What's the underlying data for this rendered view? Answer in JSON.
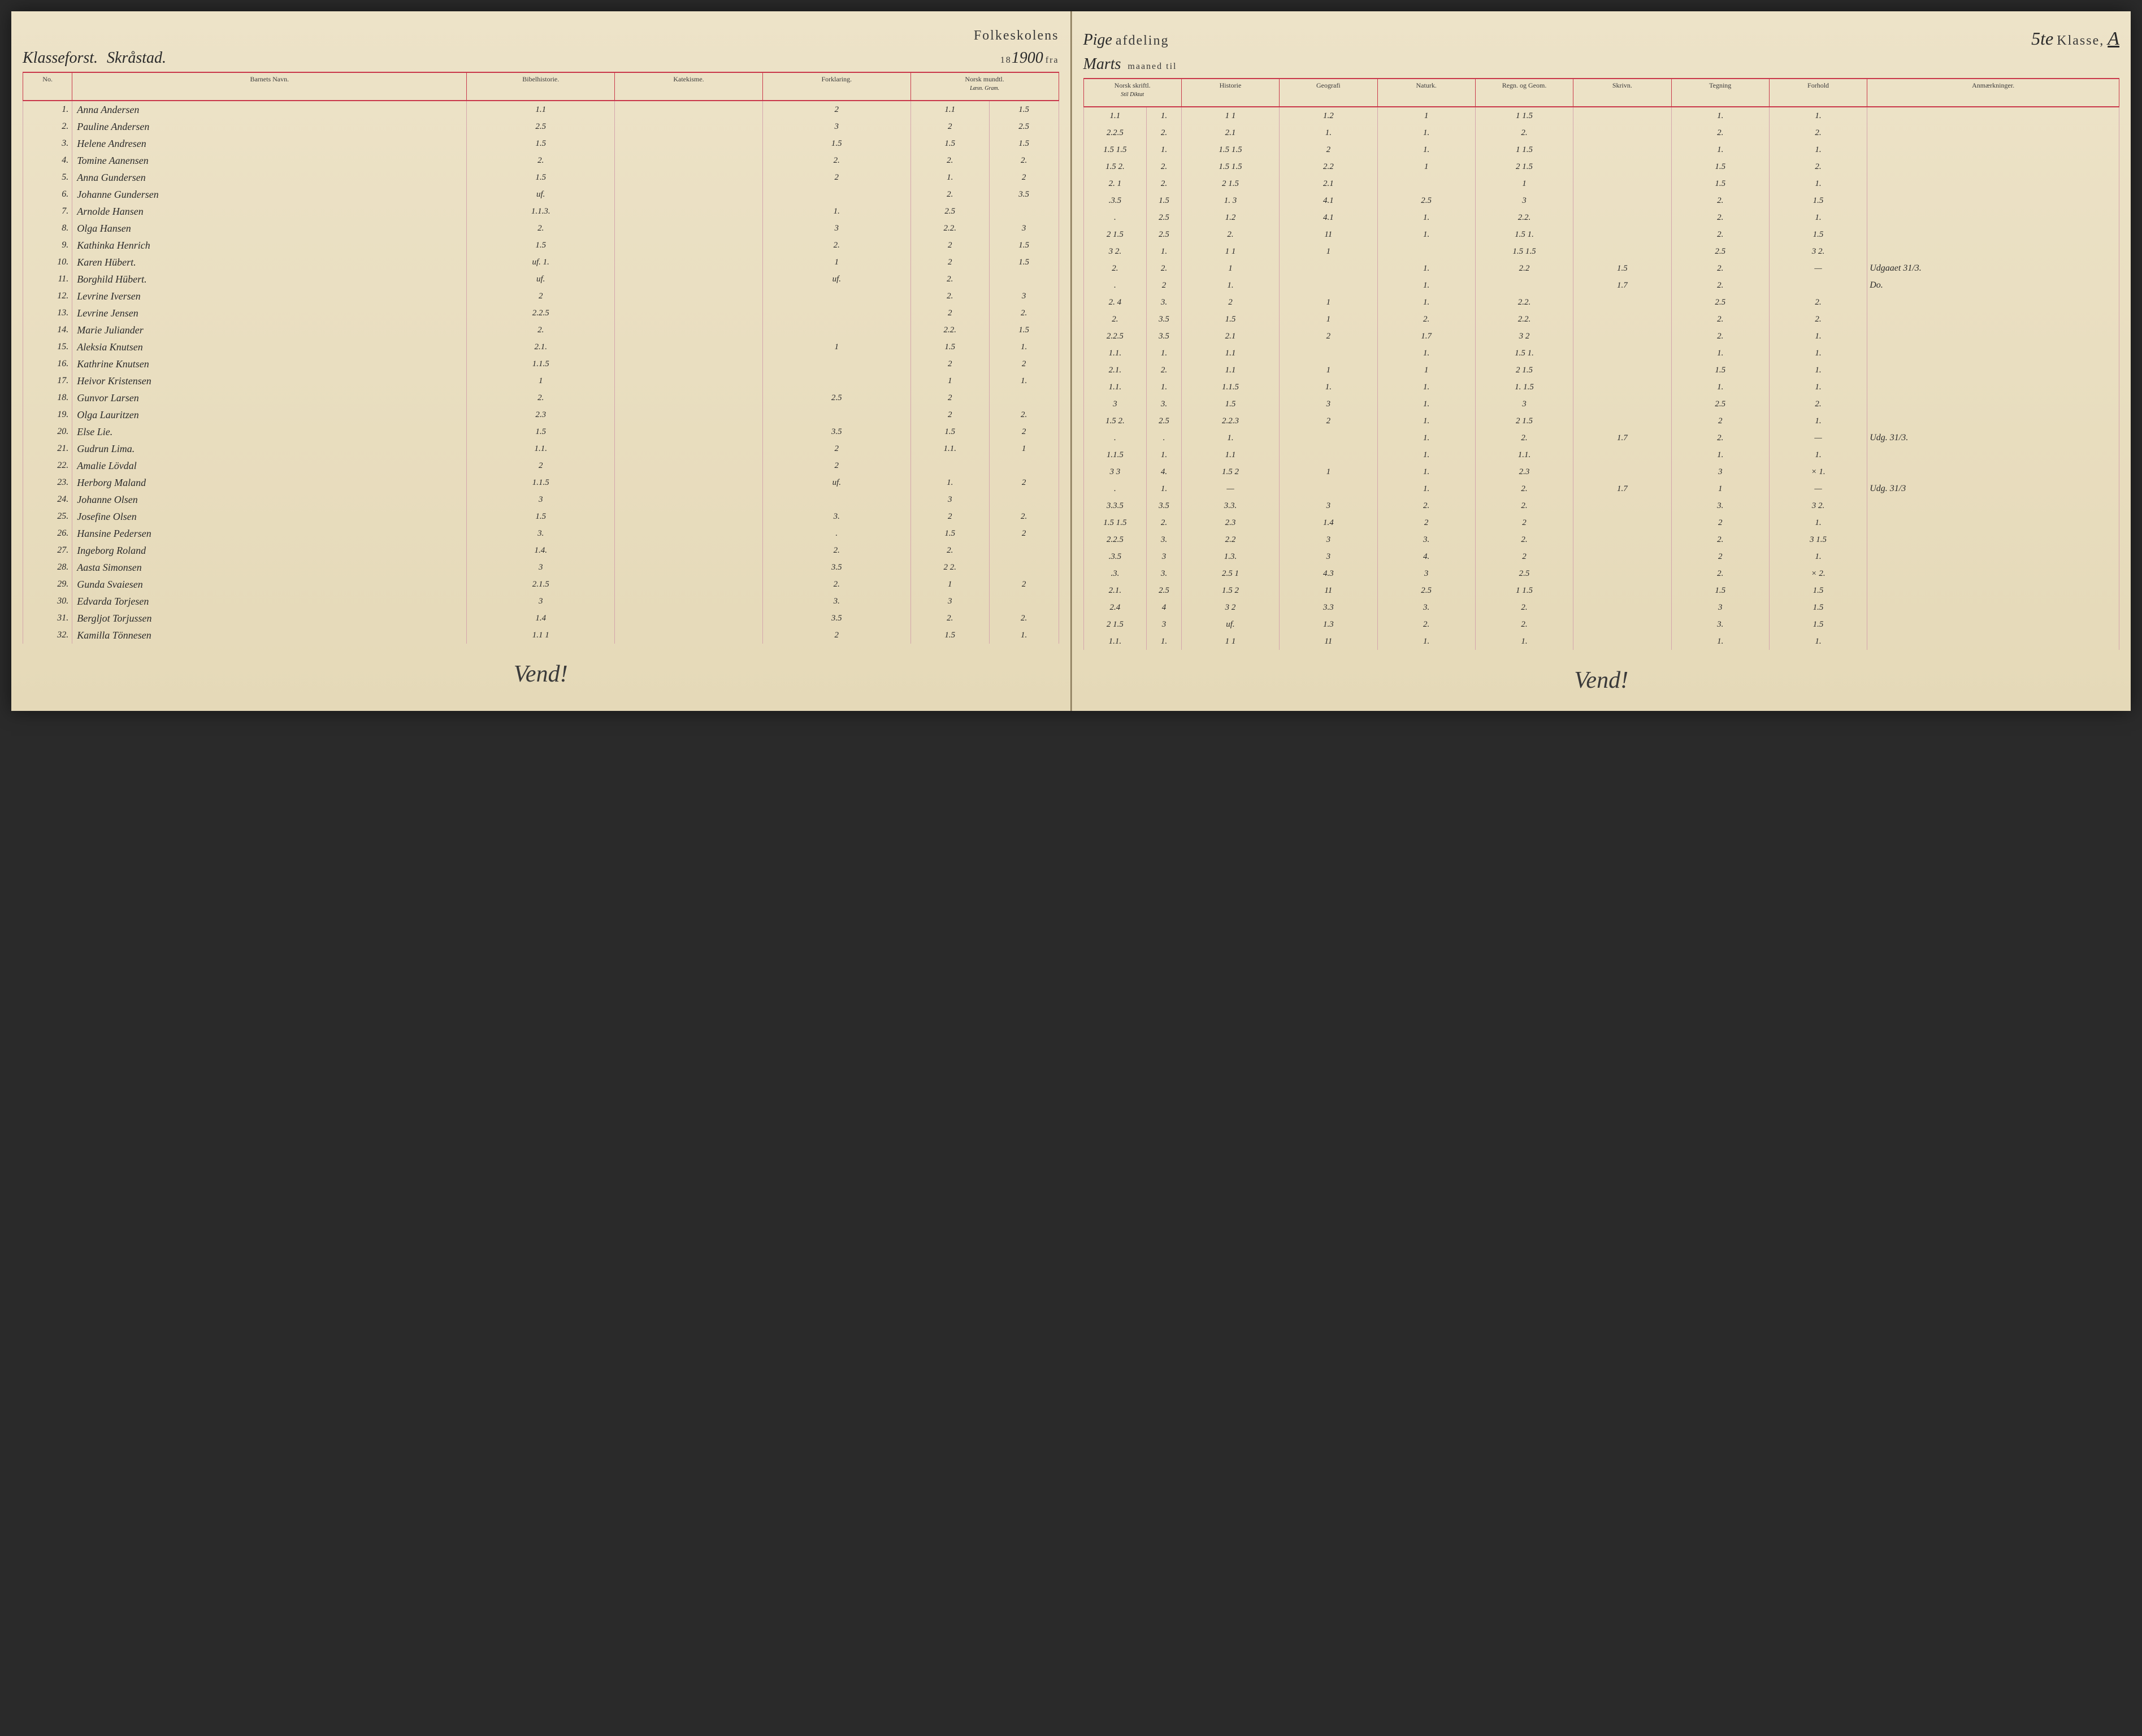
{
  "header": {
    "school_title_left": "Folkeskolens",
    "school_title_right_script": "Pige",
    "school_title_right_cont": "afdeling",
    "year_prefix": "18",
    "year_script": "1900",
    "fra": "fra",
    "month_script": "Marts",
    "maaned_til": "maaned til",
    "klasse_no": "5te",
    "klasse_label": "Klasse,",
    "klasse_letter": "A",
    "teacher_label": "Klasseforst.",
    "teacher_name": "Skråstad."
  },
  "columns_left": {
    "no": "No.",
    "name": "Barnets Navn.",
    "bibel": "Bibelhistorie.",
    "katek": "Katekisme.",
    "forkl": "Forklaring.",
    "norsk_m": "Norsk mundtl.",
    "norsk_m_sub": "Læsn. Gram."
  },
  "columns_right": {
    "norsk_s": "Norsk skriftl.",
    "norsk_s_sub": "Stil Diktat",
    "hist": "Historie",
    "geo": "Geografi",
    "natur": "Naturk.",
    "regn": "Regn. og Geom.",
    "skriv": "Skrivn.",
    "tegn": "Tegning",
    "forhold": "Forhold",
    "anm": "Anmærkninger."
  },
  "students": [
    {
      "no": "1",
      "name": "Anna Andersen",
      "bibel": "1.1",
      "forkl": "2",
      "nm1": "1.1",
      "nm2": "1.5",
      "ns1": "1.1",
      "ns2": "1.",
      "hist": "1 1",
      "geo": "1.2",
      "nat": "1",
      "regn": "1 1.5",
      "skriv": "",
      "tegn": "1.",
      "forh": "1.",
      "anm": ""
    },
    {
      "no": "2",
      "name": "Pauline Andersen",
      "bibel": "2.5",
      "forkl": "3",
      "nm1": "2",
      "nm2": "2.5",
      "ns1": "2.2.5",
      "ns2": "2.",
      "hist": "2.1",
      "geo": "1.",
      "nat": "1.",
      "regn": "2.",
      "skriv": "",
      "tegn": "2.",
      "forh": "2.",
      "anm": ""
    },
    {
      "no": "3",
      "name": "Helene Andresen",
      "bibel": "1.5",
      "forkl": "1.5",
      "nm1": "1.5",
      "nm2": "1.5",
      "ns1": "1.5 1.5",
      "ns2": "1.",
      "hist": "1.5 1.5",
      "geo": "2",
      "nat": "1.",
      "regn": "1 1.5",
      "skriv": "",
      "tegn": "1.",
      "forh": "1.",
      "anm": ""
    },
    {
      "no": "4",
      "name": "Tomine Aanensen",
      "bibel": "2.",
      "forkl": "2.",
      "nm1": "2.",
      "nm2": "2.",
      "ns1": "1.5 2.",
      "ns2": "2.",
      "hist": "1.5 1.5",
      "geo": "2.2",
      "nat": "1",
      "regn": "2 1.5",
      "skriv": "",
      "tegn": "1.5",
      "forh": "2.",
      "anm": ""
    },
    {
      "no": "5",
      "name": "Anna Gundersen",
      "bibel": "1.5",
      "forkl": "2",
      "nm1": "1.",
      "nm2": "2",
      "ns1": "2. 1",
      "ns2": "2.",
      "hist": "2 1.5",
      "geo": "2.1",
      "nat": "",
      "regn": "1",
      "skriv": "",
      "tegn": "1.5",
      "forh": "1.",
      "anm": ""
    },
    {
      "no": "6",
      "name": "Johanne Gundersen",
      "bibel": "uf.",
      "forkl": "",
      "nm1": "2.",
      "nm2": "3.5",
      "ns1": ".3.5",
      "ns2": "1.5",
      "hist": "1. 3",
      "geo": "4.1",
      "nat": "2.5",
      "regn": "3",
      "skriv": "",
      "tegn": "2.",
      "forh": "1.5",
      "anm": ""
    },
    {
      "no": "7",
      "name": "Arnolde Hansen",
      "bibel": "1.1.3.",
      "forkl": "1.",
      "nm1": "2.5",
      "nm2": "",
      "ns1": ".",
      "ns2": "2.5",
      "hist": "1.2",
      "geo": "4.1",
      "nat": "1.",
      "regn": "2.2.",
      "skriv": "",
      "tegn": "2.",
      "forh": "1.",
      "anm": ""
    },
    {
      "no": "8",
      "name": "Olga Hansen",
      "bibel": "2.",
      "forkl": "3",
      "nm1": "2.2.",
      "nm2": "3",
      "ns1": "2 1.5",
      "ns2": "2.5",
      "hist": "2.",
      "geo": "11",
      "nat": "1.",
      "regn": "1.5 1.",
      "skriv": "",
      "tegn": "2.",
      "forh": "1.5",
      "anm": ""
    },
    {
      "no": "9",
      "name": "Kathinka Henrich",
      "bibel": "1.5",
      "forkl": "2.",
      "nm1": "2",
      "nm2": "1.5",
      "ns1": "3 2.",
      "ns2": "1.",
      "hist": "1 1",
      "geo": "1",
      "nat": "",
      "regn": "1.5 1.5",
      "skriv": "",
      "tegn": "2.5",
      "forh": "3 2.",
      "anm": ""
    },
    {
      "no": "10",
      "name": "Karen Hübert.",
      "bibel": "uf. 1.",
      "forkl": "1",
      "nm1": "2",
      "nm2": "1.5",
      "ns1": "2.",
      "ns2": "2.",
      "hist": "1",
      "geo": "",
      "nat": "1.",
      "regn": "2.2",
      "skriv": "1.5",
      "tegn": "2.",
      "forh": "—",
      "anm": "Udgaaet 31/3."
    },
    {
      "no": "11",
      "name": "Borghild Hübert.",
      "bibel": "uf.",
      "forkl": "uf.",
      "nm1": "2.",
      "nm2": "",
      "ns1": ".",
      "ns2": "2",
      "hist": "1.",
      "geo": "",
      "nat": "1.",
      "regn": "",
      "skriv": "1.7",
      "tegn": "2.",
      "forh": "",
      "anm": "Do."
    },
    {
      "no": "12",
      "name": "Levrine Iversen",
      "bibel": "2",
      "forkl": "",
      "nm1": "2.",
      "nm2": "3",
      "ns1": "2. 4",
      "ns2": "3.",
      "hist": "2",
      "geo": "1",
      "nat": "1.",
      "regn": "2.2.",
      "skriv": "",
      "tegn": "2.5",
      "forh": "2.",
      "anm": ""
    },
    {
      "no": "13",
      "name": "Levrine Jensen",
      "bibel": "2.2.5",
      "forkl": "",
      "nm1": "2",
      "nm2": "2.",
      "ns1": "2.",
      "ns2": "3.5",
      "hist": "1.5",
      "geo": "1",
      "nat": "2.",
      "regn": "2.2.",
      "skriv": "",
      "tegn": "2.",
      "forh": "2.",
      "anm": ""
    },
    {
      "no": "14",
      "name": "Marie Juliander",
      "bibel": "2.",
      "forkl": "",
      "nm1": "2.2.",
      "nm2": "1.5",
      "ns1": "2.2.5",
      "ns2": "3.5",
      "hist": "2.1",
      "geo": "2",
      "nat": "1.7",
      "regn": "3 2",
      "skriv": "",
      "tegn": "2.",
      "forh": "1.",
      "anm": ""
    },
    {
      "no": "15",
      "name": "Aleksia Knutsen",
      "bibel": "2.1.",
      "forkl": "1",
      "nm1": "1.5",
      "nm2": "1.",
      "ns1": "1.1.",
      "ns2": "1.",
      "hist": "1.1",
      "geo": "",
      "nat": "1.",
      "regn": "1.5 1.",
      "skriv": "",
      "tegn": "1.",
      "forh": "1.",
      "anm": ""
    },
    {
      "no": "16",
      "name": "Kathrine Knutsen",
      "bibel": "1.1.5",
      "forkl": "",
      "nm1": "2",
      "nm2": "2",
      "ns1": "2.1.",
      "ns2": "2.",
      "hist": "1.1",
      "geo": "1",
      "nat": "1",
      "regn": "2 1.5",
      "skriv": "",
      "tegn": "1.5",
      "forh": "1.",
      "anm": ""
    },
    {
      "no": "17",
      "name": "Heivor Kristensen",
      "bibel": "1",
      "forkl": "",
      "nm1": "1",
      "nm2": "1.",
      "ns1": "1.1.",
      "ns2": "1.",
      "hist": "1.1.5",
      "geo": "1.",
      "nat": "1.",
      "regn": "1. 1.5",
      "skriv": "",
      "tegn": "1.",
      "forh": "1.",
      "anm": ""
    },
    {
      "no": "18",
      "name": "Gunvor Larsen",
      "bibel": "2.",
      "forkl": "2.5",
      "nm1": "2",
      "nm2": "",
      "ns1": "3",
      "ns2": "3.",
      "hist": "1.5",
      "geo": "3",
      "nat": "1.",
      "regn": "3",
      "skriv": "",
      "tegn": "2.5",
      "forh": "2.",
      "anm": ""
    },
    {
      "no": "19",
      "name": "Olga Lauritzen",
      "bibel": "2.3",
      "forkl": "",
      "nm1": "2",
      "nm2": "2.",
      "ns1": "1.5 2.",
      "ns2": "2.5",
      "hist": "2.2.3",
      "geo": "2",
      "nat": "1.",
      "regn": "2 1.5",
      "skriv": "",
      "tegn": "2",
      "forh": "1.",
      "anm": ""
    },
    {
      "no": "20",
      "name": "Else Lie.",
      "bibel": "1.5",
      "forkl": "3.5",
      "nm1": "1.5",
      "nm2": "2",
      "ns1": ".",
      "ns2": ".",
      "hist": "1.",
      "geo": "",
      "nat": "1.",
      "regn": "2.",
      "skriv": "1.7",
      "tegn": "2.",
      "forh": "—",
      "anm": "Udg. 31/3."
    },
    {
      "no": "21",
      "name": "Gudrun Lima.",
      "bibel": "1.1.",
      "forkl": "2",
      "nm1": "1.1.",
      "nm2": "1",
      "ns1": "1.1.5",
      "ns2": "1.",
      "hist": "1.1",
      "geo": "",
      "nat": "1.",
      "regn": "1.1.",
      "skriv": "",
      "tegn": "1.",
      "forh": "1.",
      "anm": ""
    },
    {
      "no": "22",
      "name": "Amalie Lövdal",
      "bibel": "2",
      "forkl": "2",
      "nm1": "",
      "nm2": "",
      "ns1": "3 3",
      "ns2": "4.",
      "hist": "1.5 2",
      "geo": "1",
      "nat": "1.",
      "regn": "2.3",
      "skriv": "",
      "tegn": "3",
      "forh": "× 1.",
      "anm": ""
    },
    {
      "no": "23",
      "name": "Herborg Maland",
      "bibel": "1.1.5",
      "forkl": "uf.",
      "nm1": "1.",
      "nm2": "2",
      "ns1": ".",
      "ns2": "1.",
      "hist": "—",
      "geo": "",
      "nat": "1.",
      "regn": "2.",
      "skriv": "1.7",
      "tegn": "1",
      "forh": "—",
      "anm": "Udg. 31/3"
    },
    {
      "no": "24",
      "name": "Johanne Olsen",
      "bibel": "3",
      "forkl": "",
      "nm1": "3",
      "nm2": "",
      "ns1": "3.3.5",
      "ns2": "3.5",
      "hist": "3.3.",
      "geo": "3",
      "nat": "2.",
      "regn": "2.",
      "skriv": "",
      "tegn": "3.",
      "forh": "3 2.",
      "anm": ""
    },
    {
      "no": "25",
      "name": "Josefine Olsen",
      "bibel": "1.5",
      "forkl": "3.",
      "nm1": "2",
      "nm2": "2.",
      "ns1": "1.5 1.5",
      "ns2": "2.",
      "hist": "2.3",
      "geo": "1.4",
      "nat": "2",
      "regn": "2",
      "skriv": "",
      "tegn": "2",
      "forh": "1.",
      "anm": ""
    },
    {
      "no": "26",
      "name": "Hansine Pedersen",
      "bibel": "3.",
      "forkl": ".",
      "nm1": "1.5",
      "nm2": "2",
      "ns1": "2.2.5",
      "ns2": "3.",
      "hist": "2.2",
      "geo": "3",
      "nat": "3.",
      "regn": "2.",
      "skriv": "",
      "tegn": "2.",
      "forh": "3 1.5",
      "anm": ""
    },
    {
      "no": "27",
      "name": "Ingeborg Roland",
      "bibel": "1.4.",
      "forkl": "2.",
      "nm1": "2.",
      "nm2": "",
      "ns1": ".3.5",
      "ns2": "3",
      "hist": "1.3.",
      "geo": "3",
      "nat": "4.",
      "regn": "2",
      "skriv": "",
      "tegn": "2",
      "forh": "1.",
      "anm": ""
    },
    {
      "no": "28",
      "name": "Aasta Simonsen",
      "bibel": "3",
      "forkl": "3.5",
      "nm1": "2 2.",
      "nm2": "",
      "ns1": ".3.",
      "ns2": "3.",
      "hist": "2.5 1",
      "geo": "4.3",
      "nat": "3",
      "regn": "2.5",
      "skriv": "",
      "tegn": "2.",
      "forh": "× 2.",
      "anm": ""
    },
    {
      "no": "29",
      "name": "Gunda Svaiesen",
      "bibel": "2.1.5",
      "forkl": "2.",
      "nm1": "1",
      "nm2": "2",
      "ns1": "2.1.",
      "ns2": "2.5",
      "hist": "1.5 2",
      "geo": "11",
      "nat": "2.5",
      "regn": "1 1.5",
      "skriv": "",
      "tegn": "1.5",
      "forh": "1.5",
      "anm": ""
    },
    {
      "no": "30",
      "name": "Edvarda Torjesen",
      "bibel": "3",
      "forkl": "3.",
      "nm1": "3",
      "nm2": "",
      "ns1": "2.4",
      "ns2": "4",
      "hist": "3 2",
      "geo": "3.3",
      "nat": "3.",
      "regn": "2.",
      "skriv": "",
      "tegn": "3",
      "forh": "1.5",
      "anm": ""
    },
    {
      "no": "31",
      "name": "Bergljot Torjussen",
      "bibel": "1.4",
      "forkl": "3.5",
      "nm1": "2.",
      "nm2": "2.",
      "ns1": "2 1.5",
      "ns2": "3",
      "hist": "uf.",
      "geo": "1.3",
      "nat": "2.",
      "regn": "2.",
      "skriv": "",
      "tegn": "3.",
      "forh": "1.5",
      "anm": ""
    },
    {
      "no": "32",
      "name": "Kamilla Tönnesen",
      "bibel": "1.1 1",
      "forkl": "2",
      "nm1": "1.5",
      "nm2": "1.",
      "ns1": "1.1.",
      "ns2": "1.",
      "hist": "1 1",
      "geo": "11",
      "nat": "1.",
      "regn": "1.",
      "skriv": "",
      "tegn": "1.",
      "forh": "1.",
      "anm": ""
    }
  ],
  "vend": "Vend!"
}
